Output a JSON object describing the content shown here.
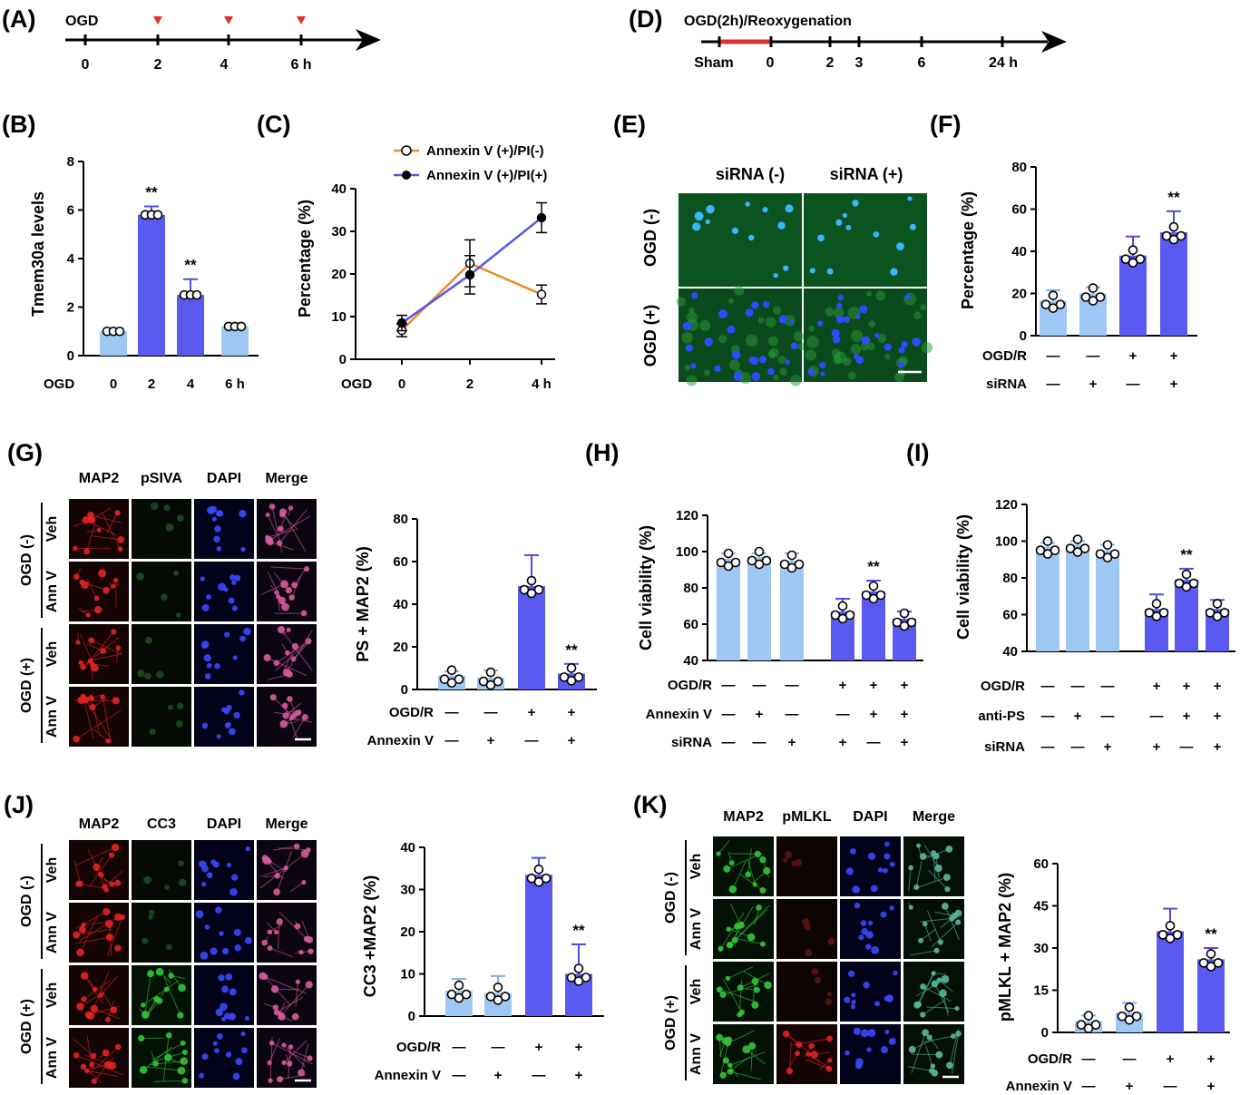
{
  "colors": {
    "light": "#9ec7f4",
    "dark": "#5a5af0",
    "err": "#4e4ee0",
    "orange": "#f08a2a",
    "blue_line": "#5656ec",
    "arrow": "#e0302a",
    "red_bar": "#e03030"
  },
  "panelA": {
    "letter": "(A)",
    "label": "OGD",
    "ticks": [
      "0",
      "2",
      "4",
      "6 h"
    ]
  },
  "panelD": {
    "letter": "(D)",
    "label": "OGD(2h)/Reoxygenation",
    "ticks": [
      "Sham",
      "0",
      "2",
      "3",
      "6",
      "24 h"
    ]
  },
  "panelB": {
    "letter": "(B)",
    "ylabel": "Tmem30a levels",
    "row_label": "OGD",
    "chart_data": {
      "type": "bar",
      "categories": [
        "0",
        "2",
        "4",
        "6 h"
      ],
      "values": [
        1.0,
        5.8,
        2.5,
        1.2
      ],
      "errors": [
        0,
        0.35,
        0.65,
        0.12
      ],
      "ylim": [
        0,
        8
      ],
      "yticks": [
        "0",
        "2",
        "4",
        "6",
        "8"
      ],
      "sig": [
        "",
        "**",
        "**",
        ""
      ]
    }
  },
  "panelC": {
    "letter": "(C)",
    "ylabel": "Percentage (%)",
    "row_label": "OGD",
    "legend": [
      "Annexin V (+)/PI(-)",
      "Annexin V (+)/PI(+)"
    ],
    "chart_data": {
      "type": "line",
      "x": [
        "0",
        "2",
        "4  h"
      ],
      "series": [
        {
          "name": "Annexin V (+)/PI(-)",
          "values": [
            6.8,
            22.5,
            15.2
          ],
          "errors": [
            1.5,
            5.5,
            2.2
          ]
        },
        {
          "name": "Annexin V (+)/PI(+)",
          "values": [
            8.5,
            19.8,
            33.2
          ],
          "errors": [
            1.8,
            4.5,
            3.5
          ]
        }
      ],
      "ylim": [
        0,
        40
      ],
      "yticks": [
        "0",
        "10",
        "20",
        "30",
        "40"
      ]
    }
  },
  "panelE": {
    "letter": "(E)",
    "cols": [
      "siRNA (-)",
      "siRNA (+)"
    ],
    "rows": [
      "OGD (-)",
      "OGD (+)"
    ]
  },
  "panelF": {
    "letter": "(F)",
    "ylabel": "Percentage (%)",
    "rows": [
      {
        "label": "OGD/R",
        "signs": [
          "—",
          "—",
          "+",
          "+"
        ]
      },
      {
        "label": "siRNA",
        "signs": [
          "—",
          "+",
          "—",
          "+"
        ]
      }
    ],
    "chart_data": {
      "type": "bar",
      "values": [
        16.5,
        20.0,
        38.0,
        49.0
      ],
      "errors": [
        5.0,
        3.0,
        9.0,
        10.0
      ],
      "ylim": [
        0,
        80
      ],
      "yticks": [
        "0",
        "20",
        "40",
        "60",
        "80"
      ],
      "sig": [
        "",
        "",
        "",
        "**"
      ]
    }
  },
  "panelG": {
    "letter": "(G)",
    "cols": [
      "MAP2",
      "pSIVA",
      "DAPI",
      "Merge"
    ],
    "groups": [
      "OGD (-)",
      "OGD (+)"
    ],
    "rows": [
      "Veh",
      "Ann V",
      "Veh",
      "Ann V"
    ],
    "ylabel": "PS + MAP2 (%)",
    "rowlabels": [
      {
        "label": "OGD/R",
        "signs": [
          "—",
          "—",
          "+",
          "+"
        ]
      },
      {
        "label": "Annexin V",
        "signs": [
          "—",
          "+",
          "—",
          "+"
        ]
      }
    ],
    "chart_data": {
      "type": "bar",
      "values": [
        6.5,
        5.5,
        48.5,
        7.5
      ],
      "errors": [
        2.0,
        3.5,
        14.5,
        4.5
      ],
      "ylim": [
        0,
        80
      ],
      "yticks": [
        "0",
        "20",
        "40",
        "60",
        "80"
      ],
      "sig": [
        "",
        "",
        "",
        "**"
      ]
    }
  },
  "panelH": {
    "letter": "(H)",
    "ylabel": "Cell viability (%)",
    "rowlabels": [
      {
        "label": "OGD/R",
        "signs": [
          "—",
          "—",
          "—",
          "+",
          "+",
          "+"
        ]
      },
      {
        "label": "Annexin V",
        "signs": [
          "—",
          "+",
          "—",
          "—",
          "+",
          "+"
        ]
      },
      {
        "label": "siRNA",
        "signs": [
          "—",
          "—",
          "+",
          "+",
          "—",
          "+"
        ]
      }
    ],
    "chart_data": {
      "type": "bar",
      "values": [
        96,
        97,
        95,
        67,
        78,
        63
      ],
      "errors": [
        3,
        2,
        4,
        7,
        6,
        4
      ],
      "ylim": [
        40,
        120
      ],
      "yticks": [
        "40",
        "60",
        "80",
        "100",
        "120"
      ],
      "sig": [
        "",
        "",
        "",
        "",
        "**",
        ""
      ]
    }
  },
  "panelI": {
    "letter": "(I)",
    "ylabel": "Cell viability (%)",
    "rowlabels": [
      {
        "label": "OGD/R",
        "signs": [
          "—",
          "—",
          "—",
          "+",
          "+",
          "+"
        ]
      },
      {
        "label": "anti-PS",
        "signs": [
          "—",
          "+",
          "—",
          "—",
          "+",
          "+"
        ]
      },
      {
        "label": "siRNA",
        "signs": [
          "—",
          "—",
          "+",
          "+",
          "—",
          "+"
        ]
      }
    ],
    "chart_data": {
      "type": "bar",
      "values": [
        97,
        98,
        95,
        63,
        79,
        63
      ],
      "errors": [
        2,
        2,
        3,
        8,
        6,
        5
      ],
      "ylim": [
        40,
        120
      ],
      "yticks": [
        "40",
        "60",
        "80",
        "100",
        "120"
      ],
      "sig": [
        "",
        "",
        "",
        "",
        "**",
        ""
      ]
    }
  },
  "panelJ": {
    "letter": "(J)",
    "cols": [
      "MAP2",
      "CC3",
      "DAPI",
      "Merge"
    ],
    "groups": [
      "OGD (-)",
      "OGD (+)"
    ],
    "rows": [
      "Veh",
      "Ann V",
      "Veh",
      "Ann V"
    ],
    "ylabel": "CC3 +MAP2 (%)",
    "rowlabels": [
      {
        "label": "OGD/R",
        "signs": [
          "—",
          "—",
          "+",
          "+"
        ]
      },
      {
        "label": "Annexin V",
        "signs": [
          "—",
          "+",
          "—",
          "+"
        ]
      }
    ],
    "chart_data": {
      "type": "bar",
      "values": [
        6.0,
        5.5,
        33.5,
        10.0
      ],
      "errors": [
        2.8,
        4.0,
        4.0,
        7.0
      ],
      "ylim": [
        0,
        40
      ],
      "yticks": [
        "0",
        "10",
        "20",
        "30",
        "40"
      ],
      "sig": [
        "",
        "",
        "",
        "**"
      ]
    }
  },
  "panelK": {
    "letter": "(K)",
    "cols": [
      "MAP2",
      "pMLKL",
      "DAPI",
      "Merge"
    ],
    "groups": [
      "OGD (-)",
      "OGD (+)"
    ],
    "rows": [
      "Veh",
      "Ann V",
      "Veh",
      "Ann V"
    ],
    "ylabel": "pMLKL + MAP2 (%)",
    "rowlabels": [
      {
        "label": "OGD/R",
        "signs": [
          "—",
          "—",
          "+",
          "+"
        ]
      },
      {
        "label": "Annexin V",
        "signs": [
          "—",
          "+",
          "—",
          "+"
        ]
      }
    ],
    "chart_data": {
      "type": "bar",
      "values": [
        4.0,
        7.0,
        36.0,
        26.0
      ],
      "errors": [
        2.0,
        3.5,
        8.0,
        4.0
      ],
      "ylim": [
        0,
        60
      ],
      "yticks": [
        "0",
        "15",
        "30",
        "45",
        "60"
      ],
      "sig": [
        "",
        "",
        "",
        "**"
      ]
    }
  }
}
